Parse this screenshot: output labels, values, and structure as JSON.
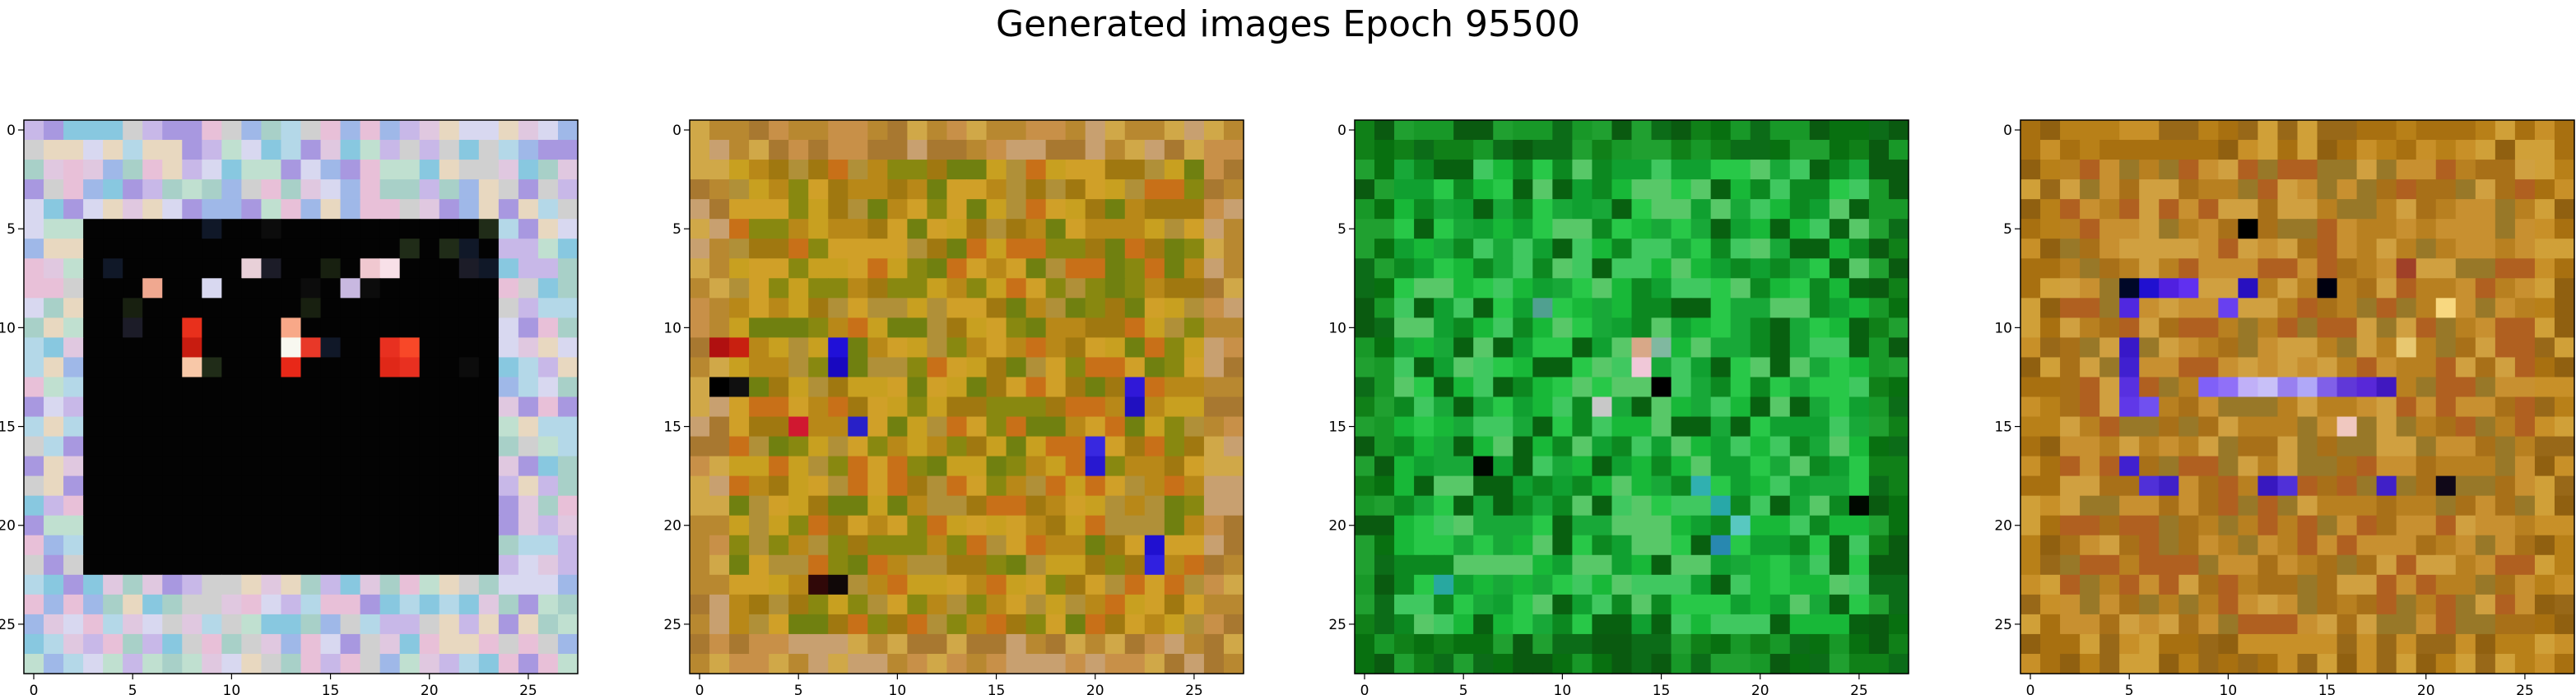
{
  "title": "Generated images Epoch 95500",
  "chart_data": {
    "type": "heatmap",
    "title": "Generated images Epoch 95500",
    "grid_size": [
      28,
      28
    ],
    "x_ticks": [
      0,
      5,
      10,
      15,
      20,
      25
    ],
    "y_ticks": [
      0,
      5,
      10,
      15,
      20,
      25
    ],
    "xlim": [
      -0.5,
      27.5
    ],
    "ylim": [
      27.5,
      -0.5
    ],
    "images": [
      {
        "palette": {
          "border": [
            "#c8b8e8",
            "#b4d8e8",
            "#d8d8f0",
            "#a8d0c8",
            "#e0c8e0",
            "#9fb8e8",
            "#c0e0d0",
            "#e8d8c0",
            "#a898e0",
            "#d0d0d0",
            "#88c8e0",
            "#e8c0d8"
          ],
          "fill": "#030303",
          "inner_rect": [
            2.5,
            4.5,
            23.5,
            22.5
          ],
          "accents": [
            {
              "x": 8,
              "y": 10,
              "color": "#e8301c"
            },
            {
              "x": 8,
              "y": 11,
              "color": "#c81c10"
            },
            {
              "x": 8,
              "y": 12,
              "color": "#f8c8a8"
            },
            {
              "x": 13,
              "y": 10,
              "color": "#f8a888"
            },
            {
              "x": 13,
              "y": 11,
              "color": "#f8f8f0"
            },
            {
              "x": 14,
              "y": 11,
              "color": "#e83828"
            },
            {
              "x": 13,
              "y": 12,
              "color": "#e82818"
            },
            {
              "x": 18,
              "y": 11,
              "color": "#e83020"
            },
            {
              "x": 19,
              "y": 11,
              "color": "#f84828"
            },
            {
              "x": 18,
              "y": 12,
              "color": "#e02818"
            },
            {
              "x": 19,
              "y": 12,
              "color": "#e83020"
            },
            {
              "x": 6,
              "y": 8,
              "color": "#f0a890"
            },
            {
              "x": 11,
              "y": 7,
              "color": "#e8d0d8"
            },
            {
              "x": 17,
              "y": 7,
              "color": "#f0c8d0"
            },
            {
              "x": 18,
              "y": 7,
              "color": "#f8e0e8"
            },
            {
              "x": 9,
              "y": 8,
              "color": "#d8d8f0"
            },
            {
              "x": 16,
              "y": 8,
              "color": "#c8b8e0"
            }
          ]
        }
      },
      {
        "palette": {
          "border": [
            "#c89048",
            "#b88830",
            "#d0a848",
            "#a87830",
            "#c8a070"
          ],
          "fill": [
            "#c8a020",
            "#b88818",
            "#a07810",
            "#d0a028",
            "#888810",
            "#c87018",
            "#708010",
            "#b09038"
          ],
          "accents": [
            {
              "x": 7,
              "y": 11,
              "color": "#2010d8"
            },
            {
              "x": 7,
              "y": 12,
              "color": "#1808c0"
            },
            {
              "x": 8,
              "y": 15,
              "color": "#2820c8"
            },
            {
              "x": 22,
              "y": 13,
              "color": "#3018d8"
            },
            {
              "x": 22,
              "y": 14,
              "color": "#2010c0"
            },
            {
              "x": 20,
              "y": 16,
              "color": "#3828e0"
            },
            {
              "x": 20,
              "y": 17,
              "color": "#2818d0"
            },
            {
              "x": 23,
              "y": 21,
              "color": "#2010d0"
            },
            {
              "x": 23,
              "y": 22,
              "color": "#3020e0"
            },
            {
              "x": 1,
              "y": 11,
              "color": "#b01010"
            },
            {
              "x": 2,
              "y": 11,
              "color": "#c82010"
            },
            {
              "x": 1,
              "y": 13,
              "color": "#000000"
            },
            {
              "x": 2,
              "y": 13,
              "color": "#101010"
            },
            {
              "x": 5,
              "y": 15,
              "color": "#d01830"
            },
            {
              "x": 6,
              "y": 23,
              "color": "#300808"
            },
            {
              "x": 7,
              "y": 23,
              "color": "#100808"
            }
          ]
        }
      },
      {
        "palette": {
          "border": [
            "#108018",
            "#0c6c18",
            "#189828",
            "#087010",
            "#20a030",
            "#0a5a10"
          ],
          "fill": [
            "#18b838",
            "#10a030",
            "#28c848",
            "#0c8820",
            "#40c860",
            "#18a838",
            "#086010",
            "#58c868"
          ],
          "accents": [
            {
              "x": 14,
              "y": 11,
              "color": "#d8a888"
            },
            {
              "x": 15,
              "y": 11,
              "color": "#80b8a0"
            },
            {
              "x": 14,
              "y": 12,
              "color": "#f0c8d8"
            },
            {
              "x": 15,
              "y": 13,
              "color": "#000000"
            },
            {
              "x": 17,
              "y": 18,
              "color": "#30b0b0"
            },
            {
              "x": 18,
              "y": 19,
              "color": "#28a8a8"
            },
            {
              "x": 18,
              "y": 21,
              "color": "#2888b0"
            },
            {
              "x": 19,
              "y": 20,
              "color": "#58c8c0"
            },
            {
              "x": 4,
              "y": 23,
              "color": "#28a8a0"
            },
            {
              "x": 9,
              "y": 9,
              "color": "#50a090"
            },
            {
              "x": 12,
              "y": 14,
              "color": "#c8c8c8"
            },
            {
              "x": 6,
              "y": 17,
              "color": "#000800"
            },
            {
              "x": 25,
              "y": 19,
              "color": "#000800"
            }
          ]
        }
      },
      {
        "palette": {
          "border": [
            "#b88018",
            "#a87010",
            "#c89028",
            "#986818",
            "#d0a038",
            "#906010"
          ],
          "fill": [
            "#b88020",
            "#c89030",
            "#a87018",
            "#b06020",
            "#d0a040",
            "#987828"
          ],
          "accents": [
            {
              "x": 5,
              "y": 8,
              "color": "#000828"
            },
            {
              "x": 6,
              "y": 8,
              "color": "#2010d0"
            },
            {
              "x": 7,
              "y": 8,
              "color": "#5020e0"
            },
            {
              "x": 8,
              "y": 8,
              "color": "#6030f0"
            },
            {
              "x": 11,
              "y": 8,
              "color": "#2810c0"
            },
            {
              "x": 5,
              "y": 9,
              "color": "#5028e0"
            },
            {
              "x": 10,
              "y": 9,
              "color": "#6840f0"
            },
            {
              "x": 5,
              "y": 11,
              "color": "#3818c8"
            },
            {
              "x": 5,
              "y": 12,
              "color": "#4020d0"
            },
            {
              "x": 5,
              "y": 13,
              "color": "#5830e0"
            },
            {
              "x": 5,
              "y": 14,
              "color": "#6038e8"
            },
            {
              "x": 6,
              "y": 14,
              "color": "#7050f0"
            },
            {
              "x": 9,
              "y": 13,
              "color": "#8060f8"
            },
            {
              "x": 10,
              "y": 13,
              "color": "#9070f8"
            },
            {
              "x": 11,
              "y": 13,
              "color": "#c0b0f8"
            },
            {
              "x": 12,
              "y": 13,
              "color": "#c8c0f8"
            },
            {
              "x": 13,
              "y": 13,
              "color": "#9880f0"
            },
            {
              "x": 14,
              "y": 13,
              "color": "#b0a8f8"
            },
            {
              "x": 15,
              "y": 13,
              "color": "#8060e8"
            },
            {
              "x": 16,
              "y": 13,
              "color": "#6038d8"
            },
            {
              "x": 17,
              "y": 13,
              "color": "#5828d8"
            },
            {
              "x": 18,
              "y": 13,
              "color": "#4018c0"
            },
            {
              "x": 5,
              "y": 17,
              "color": "#4020d0"
            },
            {
              "x": 6,
              "y": 18,
              "color": "#5030d8"
            },
            {
              "x": 7,
              "y": 18,
              "color": "#4020c8"
            },
            {
              "x": 12,
              "y": 18,
              "color": "#3818c0"
            },
            {
              "x": 13,
              "y": 18,
              "color": "#5030d8"
            },
            {
              "x": 18,
              "y": 18,
              "color": "#4020c8"
            },
            {
              "x": 21,
              "y": 18,
              "color": "#100818"
            },
            {
              "x": 11,
              "y": 5,
              "color": "#000000"
            },
            {
              "x": 15,
              "y": 8,
              "color": "#000010"
            },
            {
              "x": 19,
              "y": 7,
              "color": "#a04028"
            },
            {
              "x": 16,
              "y": 15,
              "color": "#f0c8c0"
            },
            {
              "x": 19,
              "y": 11,
              "color": "#e8c870"
            },
            {
              "x": 21,
              "y": 9,
              "color": "#f8d880"
            }
          ]
        }
      }
    ]
  }
}
